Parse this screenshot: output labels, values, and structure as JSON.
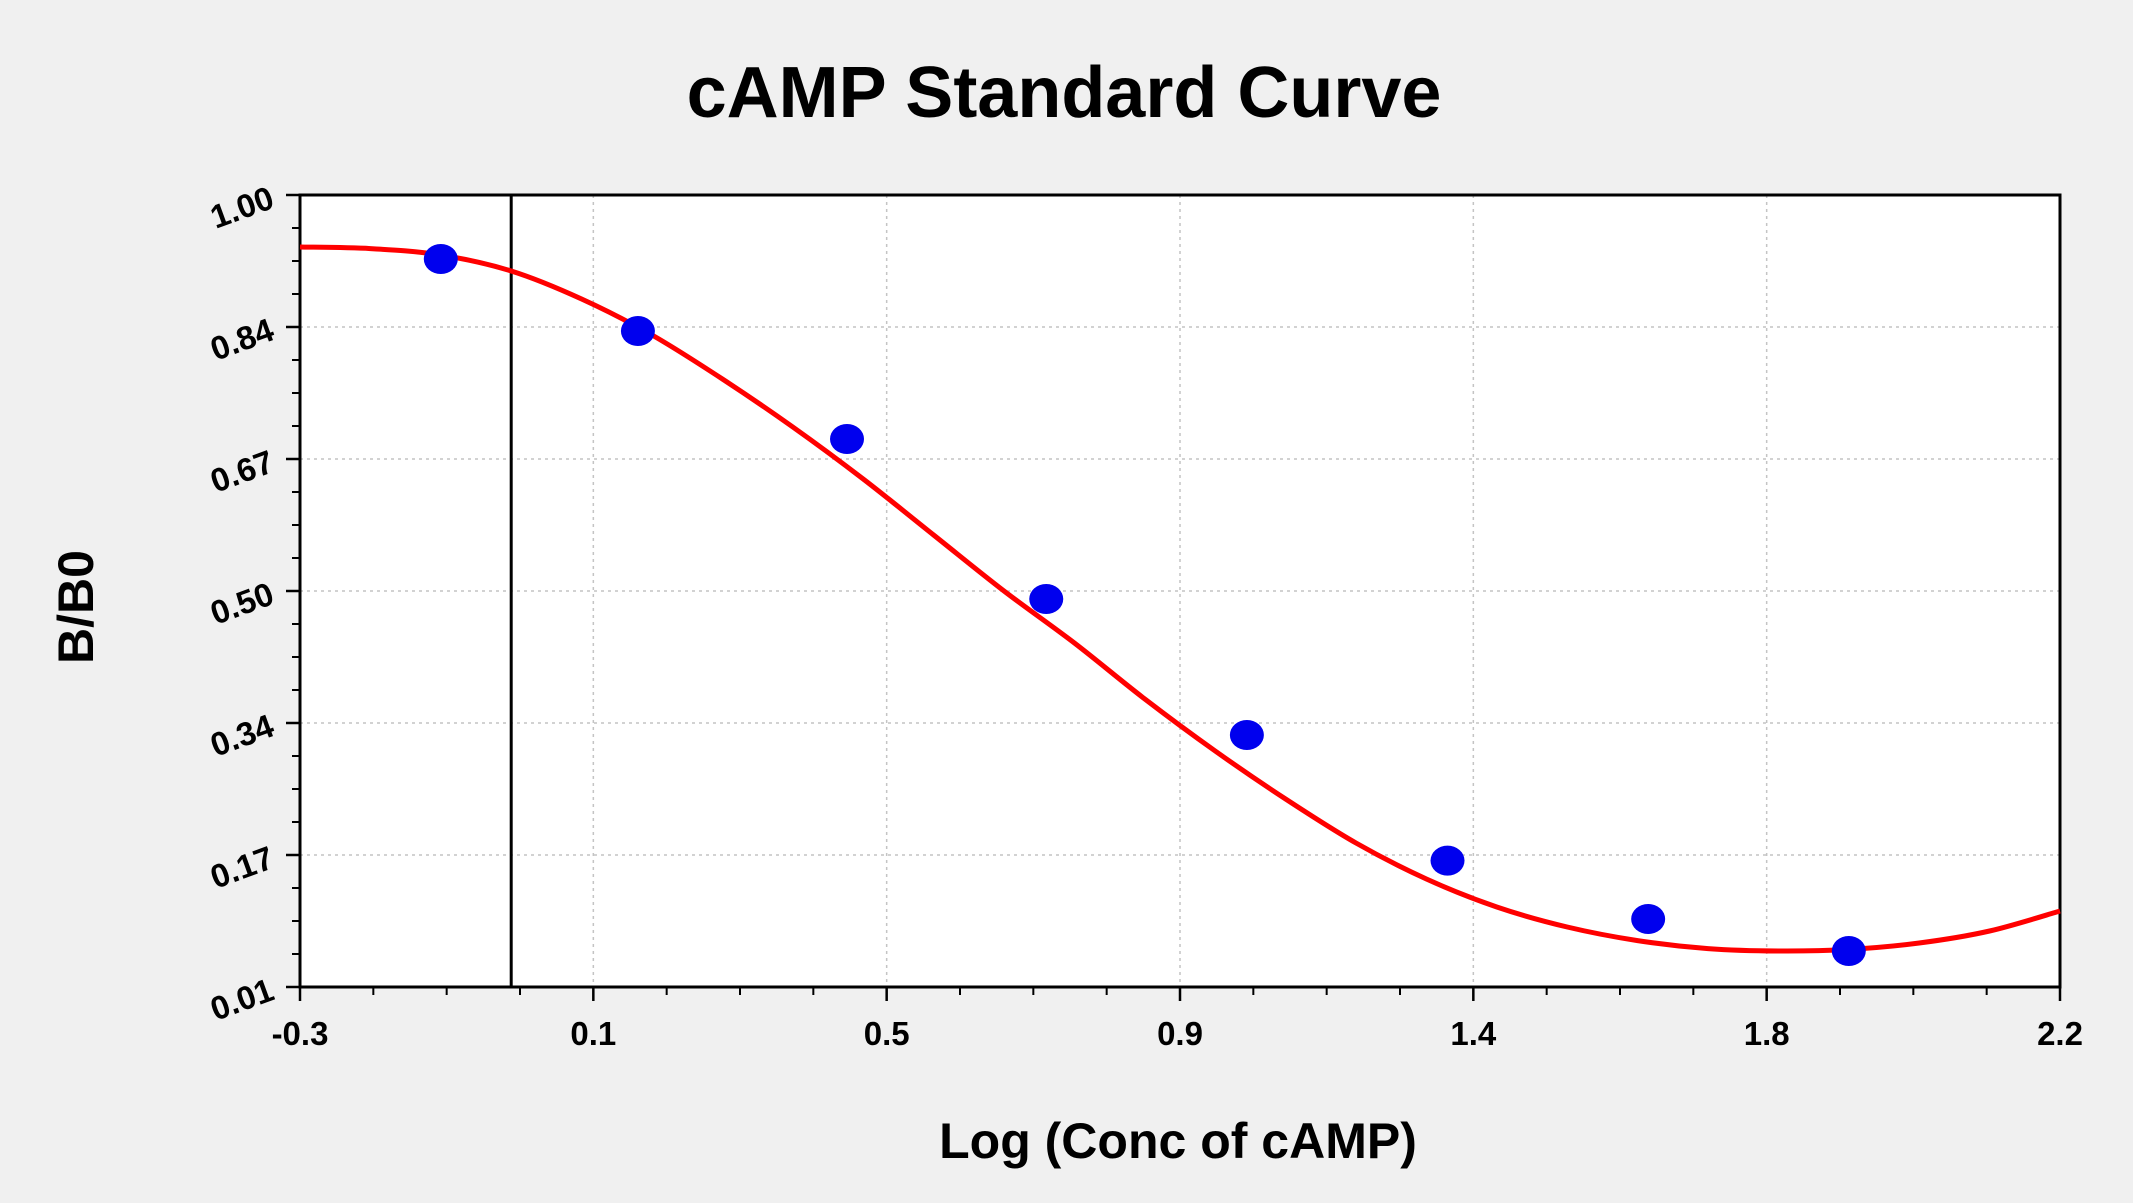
{
  "chart_data": {
    "type": "scatter",
    "title": "cAMP Standard Curve",
    "xlabel": "Log (Conc of cAMP)",
    "ylabel": "B/B0",
    "xlim": [
      -0.3,
      2.2
    ],
    "ylim": [
      0.01,
      1.0
    ],
    "xticks": [
      "-0.3",
      "0.1",
      "0.5",
      "0.9",
      "1.4",
      "1.8",
      "2.2"
    ],
    "yticks": [
      "0.01",
      "0.17",
      "0.34",
      "0.50",
      "0.67",
      "0.84",
      "1.00"
    ],
    "grid": true,
    "colors": {
      "points": "#0000ee",
      "curve": "#ff0000",
      "marker_line": "#000000",
      "background": "#f0f0f0",
      "plot_area": "#ffffff"
    },
    "reference_line_x": 0.0,
    "series": [
      {
        "kind": "points",
        "x": [
          -0.1,
          0.18,
          0.477,
          0.76,
          1.045,
          1.33,
          1.615,
          1.9
        ],
        "y": [
          0.92,
          0.83,
          0.695,
          0.495,
          0.325,
          0.168,
          0.095,
          0.055
        ]
      },
      {
        "kind": "fit-curve",
        "x": [
          -0.3,
          -0.2,
          -0.1,
          0.0,
          0.1,
          0.2,
          0.3,
          0.4,
          0.5,
          0.6,
          0.7,
          0.8,
          0.9,
          1.0,
          1.1,
          1.2,
          1.3,
          1.4,
          1.5,
          1.6,
          1.7,
          1.8,
          1.9,
          2.0,
          2.1,
          2.2
        ],
        "y": [
          0.935,
          0.933,
          0.925,
          0.905,
          0.87,
          0.825,
          0.77,
          0.71,
          0.645,
          0.575,
          0.505,
          0.44,
          0.37,
          0.305,
          0.245,
          0.19,
          0.145,
          0.11,
          0.085,
          0.068,
          0.058,
          0.055,
          0.057,
          0.065,
          0.08,
          0.105
        ]
      }
    ]
  }
}
